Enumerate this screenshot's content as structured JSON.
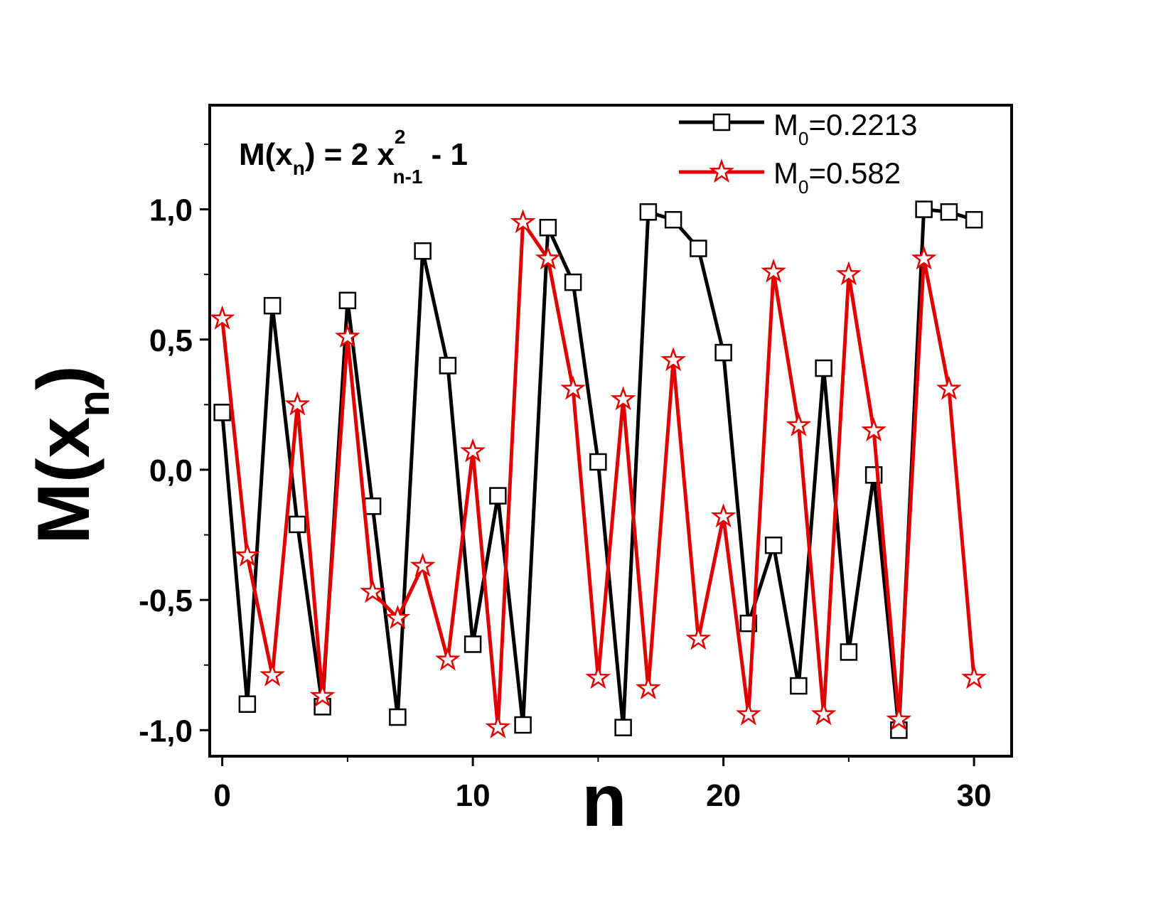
{
  "chart_data": {
    "type": "line",
    "title": "M(x_n) = 2 x^2_{n-1} - 1",
    "formula": {
      "lhs_main": "M(x",
      "lhs_sub": "n",
      "middle": ") = 2 x",
      "sup": "2",
      "sub": "n-1",
      "rhs": " - 1"
    },
    "xlabel": "n",
    "ylabel": {
      "main": "M(x",
      "sub": "n",
      "close": ")"
    },
    "xlim": [
      -0.5,
      31.5
    ],
    "ylim": [
      -1.1,
      1.4
    ],
    "x_ticks": [
      0,
      10,
      20,
      30
    ],
    "x_tick_labels": [
      "0",
      "10",
      "20",
      "30"
    ],
    "y_ticks": [
      1.0,
      0.5,
      0.0,
      -0.5,
      -1.0
    ],
    "y_tick_labels": [
      "1,0",
      "0,5",
      "0,0",
      "-0,5",
      "-1,0"
    ],
    "legend_position": "top-right",
    "x": [
      0,
      1,
      2,
      3,
      4,
      5,
      6,
      7,
      8,
      9,
      10,
      11,
      12,
      13,
      14,
      15,
      16,
      17,
      18,
      19,
      20,
      21,
      22,
      23,
      24,
      25,
      26,
      27,
      28,
      29,
      30
    ],
    "series": [
      {
        "name": "M0=0.2213",
        "legend_main": "M",
        "legend_sub": "0",
        "legend_value": "=0.2213",
        "color": "#000000",
        "marker": "square",
        "values": [
          0.22,
          -0.9,
          0.63,
          -0.21,
          -0.91,
          0.65,
          -0.14,
          -0.95,
          0.84,
          0.4,
          -0.67,
          -0.1,
          -0.98,
          0.93,
          0.72,
          0.03,
          -0.99,
          0.99,
          0.96,
          0.85,
          0.45,
          -0.59,
          -0.29,
          -0.83,
          0.39,
          -0.7,
          -0.02,
          -1.0,
          1.0,
          0.99,
          0.96
        ]
      },
      {
        "name": "M0=0.582",
        "legend_main": "M",
        "legend_sub": "0",
        "legend_value": "=0.582",
        "color": "#e00000",
        "marker": "star",
        "values": [
          0.58,
          -0.33,
          -0.79,
          0.25,
          -0.87,
          0.51,
          -0.47,
          -0.57,
          -0.37,
          -0.73,
          0.07,
          -0.99,
          0.95,
          0.81,
          0.31,
          -0.8,
          0.27,
          -0.84,
          0.42,
          -0.65,
          -0.18,
          -0.94,
          0.76,
          0.17,
          -0.94,
          0.75,
          0.15,
          -0.96,
          0.81,
          0.31,
          -0.8
        ]
      }
    ]
  }
}
